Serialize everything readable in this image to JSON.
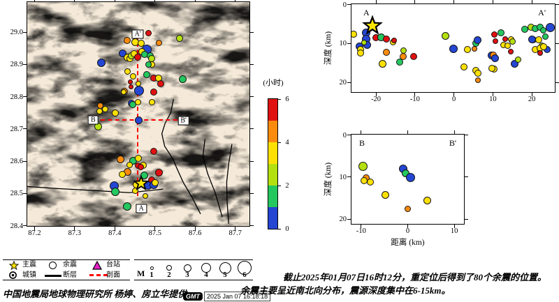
{
  "colors": {
    "b": "#2446d2",
    "g": "#25c75f",
    "c": "#b4e010",
    "y": "#fde105",
    "o": "#fb8b0e",
    "r": "#e01111",
    "star_fill": "#ffe600",
    "station": "#e820c8",
    "profile_line": "#ff0000",
    "fault": "#000000",
    "map_bg": "#f5ead9",
    "terrain_brown": "#9c6a43"
  },
  "colorbar": {
    "title": "(小时)",
    "ticks": [
      6,
      4,
      2,
      0
    ],
    "segments": [
      "#e01111",
      "#fb8b0e",
      "#fde105",
      "#b4e010",
      "#25c75f",
      "#2446d2"
    ]
  },
  "chart_data": [
    {
      "type": "scatter",
      "id": "map",
      "x_range": [
        87.1828,
        87.7345
      ],
      "y_range": [
        28.4,
        29.092
      ],
      "x_ticks": [
        87.2,
        87.3,
        87.4,
        87.5,
        87.6,
        87.7
      ],
      "y_ticks": [
        29.0,
        28.9,
        28.8,
        28.7,
        28.6,
        28.5,
        28.4
      ],
      "profile_labels": {
        "a_top": "A'",
        "a_bottom": "A",
        "b_left": "B",
        "b_right": "B'"
      },
      "profile_A": {
        "lon": 87.458,
        "lat_top": 28.988,
        "lat_bot": 28.49
      },
      "profile_B": {
        "lat": 28.726,
        "lon_left": 87.365,
        "lon_right": 87.575
      },
      "mainshock": {
        "lon": 87.466,
        "lat": 28.53
      },
      "faults": [
        [
          [
            87.183,
            28.522
          ],
          [
            87.255,
            28.516
          ],
          [
            87.342,
            28.51
          ],
          [
            87.437,
            28.503
          ],
          [
            87.52,
            28.514
          ]
        ],
        [
          [
            87.546,
            28.792
          ],
          [
            87.539,
            28.75
          ],
          [
            87.525,
            28.717
          ],
          [
            87.517,
            28.685
          ],
          [
            87.524,
            28.647
          ],
          [
            87.544,
            28.608
          ],
          [
            87.555,
            28.576
          ],
          [
            87.57,
            28.535
          ],
          [
            87.593,
            28.486
          ],
          [
            87.613,
            28.437
          ]
        ],
        [
          [
            87.624,
            28.668
          ],
          [
            87.619,
            28.615
          ],
          [
            87.631,
            28.561
          ],
          [
            87.65,
            28.501
          ],
          [
            87.667,
            28.428
          ]
        ],
        [
          [
            87.691,
            28.653
          ],
          [
            87.683,
            28.593
          ],
          [
            87.678,
            28.535
          ],
          [
            87.679,
            28.475
          ],
          [
            87.683,
            28.407
          ]
        ]
      ],
      "points": [
        [
          87.432,
          28.974,
          "o",
          5
        ],
        [
          87.451,
          28.968,
          "y",
          5.5
        ],
        [
          87.466,
          28.964,
          "y",
          5
        ],
        [
          87.485,
          28.996,
          "r",
          4.5
        ],
        [
          87.562,
          28.979,
          "c",
          5
        ],
        [
          87.511,
          28.966,
          "o",
          4.5
        ],
        [
          87.48,
          28.946,
          "b",
          7
        ],
        [
          87.42,
          28.934,
          "b",
          5.5
        ],
        [
          87.432,
          28.921,
          "y",
          5.5
        ],
        [
          87.439,
          28.916,
          "y",
          5
        ],
        [
          87.442,
          28.925,
          "c",
          5
        ],
        [
          87.449,
          28.931,
          "y",
          5
        ],
        [
          87.458,
          28.921,
          "r",
          5
        ],
        [
          87.468,
          28.938,
          "y",
          5
        ],
        [
          87.475,
          28.929,
          "g",
          5
        ],
        [
          87.489,
          28.925,
          "g",
          5
        ],
        [
          87.492,
          28.916,
          "c",
          5
        ],
        [
          87.494,
          28.899,
          "y",
          4.5
        ],
        [
          87.485,
          28.899,
          "g",
          4.5
        ],
        [
          87.368,
          28.904,
          "b",
          6
        ],
        [
          87.432,
          28.876,
          "y",
          4.5
        ],
        [
          87.446,
          28.861,
          "y",
          4.5
        ],
        [
          87.46,
          28.839,
          "y",
          4
        ],
        [
          87.48,
          28.867,
          "g",
          5
        ],
        [
          87.498,
          28.857,
          "r",
          5
        ],
        [
          87.51,
          28.857,
          "y",
          5
        ],
        [
          87.515,
          28.839,
          "r",
          5
        ],
        [
          87.442,
          28.829,
          "r",
          3.5
        ],
        [
          87.425,
          28.816,
          "o",
          5
        ],
        [
          87.461,
          28.818,
          "b",
          7
        ],
        [
          87.498,
          28.812,
          "r",
          5
        ],
        [
          87.57,
          28.854,
          "g",
          5.5
        ],
        [
          87.44,
          28.844,
          "r",
          3.5
        ],
        [
          87.423,
          28.812,
          "y",
          4
        ],
        [
          87.442,
          28.779,
          "b",
          5
        ],
        [
          87.446,
          28.775,
          "g",
          5
        ],
        [
          87.458,
          28.782,
          "y",
          4.5
        ],
        [
          87.494,
          28.782,
          "y",
          4.5
        ],
        [
          87.364,
          28.771,
          "o",
          4.5
        ],
        [
          87.363,
          28.754,
          "y",
          4.5
        ],
        [
          87.376,
          28.76,
          "y",
          4.5
        ],
        [
          87.402,
          28.749,
          "y",
          5
        ],
        [
          87.359,
          28.707,
          "c",
          5.5
        ],
        [
          87.46,
          28.726,
          "b",
          5.5
        ],
        [
          87.498,
          28.63,
          "r",
          5
        ],
        [
          87.415,
          28.604,
          "o",
          5.5
        ],
        [
          87.446,
          28.6,
          "g",
          5.5
        ],
        [
          87.46,
          28.608,
          "y",
          5
        ],
        [
          87.472,
          28.587,
          "y",
          5
        ],
        [
          87.437,
          28.587,
          "y",
          4.5
        ],
        [
          87.458,
          28.585,
          "r",
          4.5
        ],
        [
          87.466,
          28.58,
          "r",
          4.5
        ],
        [
          87.432,
          28.565,
          "o",
          5.5
        ],
        [
          87.42,
          28.557,
          "y",
          5
        ],
        [
          87.51,
          28.563,
          "r",
          5.5
        ],
        [
          87.475,
          28.555,
          "g",
          5.5
        ],
        [
          87.492,
          28.54,
          "r",
          5
        ],
        [
          87.399,
          28.523,
          "b",
          6.5
        ],
        [
          87.402,
          28.503,
          "g",
          6
        ],
        [
          87.484,
          28.523,
          "b",
          6
        ],
        [
          87.498,
          28.525,
          "b",
          6
        ],
        [
          87.501,
          28.531,
          "y",
          5
        ],
        [
          87.454,
          28.525,
          "y",
          5
        ],
        [
          87.451,
          28.508,
          "y",
          4.5
        ],
        [
          87.477,
          28.49,
          "y",
          4
        ],
        [
          87.432,
          28.458,
          "g",
          6
        ]
      ]
    },
    {
      "type": "scatter",
      "id": "sectionA",
      "corner_left": "A",
      "corner_right": "A'",
      "ylabel": "深度 (km)",
      "x_range": [
        -26.2,
        25.8
      ],
      "x_ticks": [
        -20,
        -10,
        0,
        10,
        20
      ],
      "d_range": [
        0,
        22.4
      ],
      "d_ticks": [
        0,
        10,
        20
      ],
      "mainshock": {
        "x": -20.9,
        "d": 5.6
      },
      "points": [
        [
          -25.7,
          7.7,
          "y",
          5
        ],
        [
          -22.5,
          7.4,
          "b",
          6
        ],
        [
          -22.5,
          9.0,
          "b",
          6
        ],
        [
          -22.1,
          10.4,
          "b",
          5.5
        ],
        [
          -24.2,
          10.9,
          "b",
          5.5
        ],
        [
          -23.0,
          9.9,
          "c",
          4
        ],
        [
          -23.9,
          11.6,
          "y",
          5
        ],
        [
          -23.8,
          12.5,
          "y",
          5
        ],
        [
          -20.0,
          8.6,
          "r",
          5
        ],
        [
          -18.6,
          8.6,
          "g",
          5.5
        ],
        [
          -17.3,
          8.9,
          "r",
          5
        ],
        [
          -15.6,
          9.7,
          "y",
          4.5
        ],
        [
          -15.2,
          9.4,
          "r",
          4
        ],
        [
          -18.3,
          15.3,
          "y",
          5.5
        ],
        [
          -17.2,
          12.3,
          "o",
          5
        ],
        [
          -12.9,
          11.9,
          "c",
          4.5
        ],
        [
          -13.0,
          13.4,
          "o",
          5
        ],
        [
          -13.8,
          14.9,
          "g",
          5
        ],
        [
          -10.3,
          13.4,
          "r",
          5
        ],
        [
          -2.1,
          8.2,
          "c",
          5.5
        ],
        [
          0.0,
          11.4,
          "b",
          6
        ],
        [
          3.5,
          11.7,
          "y",
          5
        ],
        [
          5.7,
          10.0,
          "g",
          5
        ],
        [
          6.2,
          9.3,
          "b",
          5.5
        ],
        [
          5.3,
          11.4,
          "o",
          4
        ],
        [
          2.7,
          16.1,
          "y",
          5
        ],
        [
          5.7,
          17.0,
          "y",
          5
        ],
        [
          6.3,
          17.7,
          "y",
          5
        ],
        [
          6.2,
          19.5,
          "o",
          4
        ],
        [
          10.3,
          16.7,
          "y",
          5
        ],
        [
          9.8,
          13.2,
          "b",
          5.5
        ],
        [
          10.2,
          13.0,
          "o",
          5
        ],
        [
          10.4,
          7.8,
          "r",
          4.5
        ],
        [
          12.1,
          7.4,
          "g",
          5
        ],
        [
          13.3,
          9.0,
          "r",
          4
        ],
        [
          10.7,
          9.5,
          "r",
          4
        ],
        [
          12.8,
          10.4,
          "y",
          4.5
        ],
        [
          13.9,
          10.7,
          "y",
          4.5
        ],
        [
          14.7,
          9.1,
          "y",
          4.5
        ],
        [
          15.1,
          9.5,
          "c",
          4.5
        ],
        [
          14.7,
          12.1,
          "r",
          4
        ],
        [
          10.7,
          13.9,
          "b",
          5.5
        ],
        [
          9.8,
          16.5,
          "y",
          5
        ],
        [
          15.6,
          15.3,
          "b",
          5.5
        ],
        [
          16.5,
          14.2,
          "c",
          4.5
        ],
        [
          18.3,
          6.5,
          "g",
          5
        ],
        [
          19.9,
          6.0,
          "c",
          5
        ],
        [
          21.0,
          6.3,
          "g",
          5
        ],
        [
          22.2,
          6.0,
          "g",
          5
        ],
        [
          23.1,
          6.8,
          "g",
          4.5
        ],
        [
          24.9,
          6.0,
          "b",
          6.5
        ],
        [
          20.4,
          9.1,
          "y",
          5
        ],
        [
          21.8,
          9.1,
          "y",
          5
        ],
        [
          20.1,
          9.1,
          "b",
          5.5
        ],
        [
          22.7,
          10.7,
          "c",
          4.5
        ],
        [
          21.0,
          11.6,
          "y",
          5
        ],
        [
          22.2,
          11.2,
          "y",
          5
        ],
        [
          22.2,
          12.5,
          "r",
          4
        ],
        [
          24.0,
          11.6,
          "b",
          5
        ],
        [
          23.1,
          10.9,
          "y",
          5
        ],
        [
          23.6,
          8.3,
          "g",
          4.5
        ]
      ]
    },
    {
      "type": "scatter",
      "id": "sectionB",
      "corner_left": "B",
      "corner_right": "B'",
      "ylabel": "深度 (km)",
      "xlabel": "距离 (km)",
      "x_range": [
        -12,
        12
      ],
      "x_ticks": [
        -10,
        0,
        10
      ],
      "d_range": [
        0,
        21
      ],
      "d_ticks": [
        0,
        10,
        20
      ],
      "points": [
        [
          -9.5,
          7.5,
          "c",
          6.5
        ],
        [
          -8.9,
          10.3,
          "o",
          5
        ],
        [
          -9.3,
          10.9,
          "y",
          5
        ],
        [
          -8.0,
          11.3,
          "y",
          5
        ],
        [
          -4.8,
          14.3,
          "y",
          5.5
        ],
        [
          -0.9,
          8.1,
          "b",
          6
        ],
        [
          -0.4,
          9.2,
          "g",
          5.5
        ],
        [
          0.6,
          10.2,
          "b",
          6.5
        ],
        [
          4.2,
          15.6,
          "y",
          5.5
        ],
        [
          0.0,
          17.6,
          "o",
          4.5
        ]
      ]
    }
  ],
  "legend": {
    "mainshock_label": "主震",
    "aftershock_label": "余震",
    "station_label": "台站",
    "town_label": "城镇",
    "fault_label": "断层",
    "profile_label": "剖面",
    "mag_prefix": "M",
    "mags": [
      1,
      2,
      3,
      4,
      5,
      6
    ],
    "mag_radii": [
      2.5,
      4,
      5.5,
      7,
      8.5,
      10
    ]
  },
  "footer": {
    "credit": "中国地震局地球物理研究所 杨婷、房立华提供",
    "gmt_logo": "GMT",
    "timestamp": "2025 Jan 07 16:18:18"
  },
  "notes": {
    "line1": "截止2025年01月07日16时12分，重定位后得到了80个余震的位置。",
    "line2": "余震主要呈近南北向分布，震源深度集中在6-15km。"
  }
}
